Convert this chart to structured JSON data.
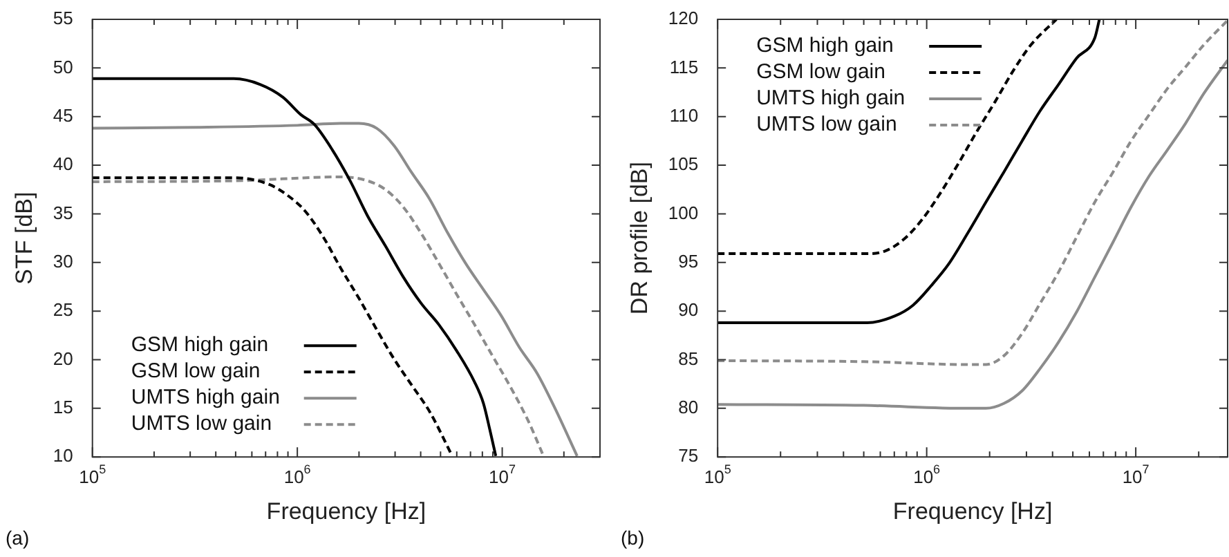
{
  "chart_data": [
    {
      "type": "line",
      "xlabel": "Frequency [Hz]",
      "ylabel": "STF [dB]",
      "log": "x",
      "legend": "bottom left",
      "marker": "none",
      "annotations": [
        "(a)"
      ],
      "xlim": [
        100000,
        30000000
      ],
      "ylim": [
        10,
        55
      ],
      "xticks": [
        {
          "value": 100000,
          "label": "10$^{5}$"
        },
        {
          "value": 200000,
          "label": null
        },
        {
          "value": 300000,
          "label": null
        },
        {
          "value": 400000,
          "label": null
        },
        {
          "value": 500000,
          "label": null
        },
        {
          "value": 600000,
          "label": null
        },
        {
          "value": 700000,
          "label": null
        },
        {
          "value": 800000,
          "label": null
        },
        {
          "value": 900000,
          "label": null
        },
        {
          "value": 1000000,
          "label": "10$^{6}$"
        },
        {
          "value": 2000000,
          "label": null
        },
        {
          "value": 3000000,
          "label": null
        },
        {
          "value": 4000000,
          "label": null
        },
        {
          "value": 5000000,
          "label": null
        },
        {
          "value": 6000000,
          "label": null
        },
        {
          "value": 7000000,
          "label": null
        },
        {
          "value": 8000000,
          "label": null
        },
        {
          "value": 9000000,
          "label": null
        },
        {
          "value": 10000000,
          "label": "10$^{7}$"
        },
        {
          "value": 20000000,
          "label": null
        },
        {
          "value": 30000000,
          "label": null
        }
      ],
      "yticks": [
        10,
        15,
        20,
        25,
        30,
        35,
        40,
        45,
        50,
        55
      ],
      "series": [
        {
          "name": "GSM high gain",
          "color": "#000000",
          "line_style": "solid",
          "x": [
            100000,
            490000,
            660000,
            850000,
            1040000,
            1210000,
            1480000,
            1810000,
            2200000,
            2690000,
            3290000,
            4020000,
            4910000,
            6000000,
            7330000,
            8100000,
            8700000,
            9300000
          ],
          "values": [
            48.9,
            48.9,
            48.3,
            47.0,
            45.2,
            44.2,
            41.6,
            38.4,
            34.8,
            31.7,
            28.5,
            25.8,
            23.6,
            20.9,
            17.7,
            15.5,
            12.8,
            10.1
          ]
        },
        {
          "name": "GSM low gain",
          "color": "#000000",
          "line_style": "dashed",
          "x": [
            100000,
            500000,
            733000,
            896000,
            1090000,
            1340000,
            1630000,
            2000000,
            2440000,
            2980000,
            3640000,
            4440000,
            5700000
          ],
          "values": [
            38.7,
            38.7,
            38.0,
            36.9,
            35.3,
            32.6,
            29.4,
            26.3,
            23.1,
            20.0,
            17.3,
            14.6,
            10.1
          ]
        },
        {
          "name": "UMTS high gain",
          "color": "#8c8c8c",
          "line_style": "solid",
          "x": [
            100000,
            329000,
            1000000,
            1630000,
            2000000,
            2440000,
            2970000,
            3600000,
            4400000,
            5430000,
            6630000,
            8100000,
            9900000,
            12100000,
            14800000,
            18100000,
            23200000
          ],
          "values": [
            43.8,
            43.9,
            44.1,
            44.3,
            44.3,
            43.8,
            42.0,
            39.3,
            36.6,
            33.0,
            29.9,
            27.2,
            24.5,
            21.3,
            18.6,
            15.0,
            10.1
          ]
        },
        {
          "name": "UMTS low gain",
          "color": "#8c8c8c",
          "line_style": "dashed",
          "x": [
            100000,
            500000,
            1630000,
            2200000,
            2690000,
            3290000,
            4020000,
            4910000,
            6000000,
            7330000,
            8960000,
            10900000,
            13400000,
            15900000
          ],
          "values": [
            38.3,
            38.4,
            38.8,
            38.4,
            37.5,
            35.7,
            33.0,
            29.9,
            26.7,
            23.6,
            20.4,
            17.3,
            13.7,
            10.1
          ]
        }
      ]
    },
    {
      "type": "line",
      "xlabel": "Frequency [Hz]",
      "ylabel": "DR profile [dB]",
      "log": "x",
      "legend": "top left",
      "marker": "none",
      "annotations": [
        "(b)"
      ],
      "xlim": [
        100000,
        27500000
      ],
      "ylim": [
        75,
        120
      ],
      "xticks": [
        {
          "value": 100000,
          "label": "10$^{5}$"
        },
        {
          "value": 200000,
          "label": null
        },
        {
          "value": 300000,
          "label": null
        },
        {
          "value": 400000,
          "label": null
        },
        {
          "value": 500000,
          "label": null
        },
        {
          "value": 600000,
          "label": null
        },
        {
          "value": 700000,
          "label": null
        },
        {
          "value": 800000,
          "label": null
        },
        {
          "value": 900000,
          "label": null
        },
        {
          "value": 1000000,
          "label": "10$^{6}$"
        },
        {
          "value": 2000000,
          "label": null
        },
        {
          "value": 3000000,
          "label": null
        },
        {
          "value": 4000000,
          "label": null
        },
        {
          "value": 5000000,
          "label": null
        },
        {
          "value": 6000000,
          "label": null
        },
        {
          "value": 7000000,
          "label": null
        },
        {
          "value": 8000000,
          "label": null
        },
        {
          "value": 9000000,
          "label": null
        },
        {
          "value": 10000000,
          "label": "10$^{7}$"
        },
        {
          "value": 20000000,
          "label": null
        }
      ],
      "yticks": [
        75,
        80,
        85,
        90,
        95,
        100,
        105,
        110,
        115,
        120
      ],
      "series": [
        {
          "name": "GSM high gain",
          "color": "#000000",
          "line_style": "solid",
          "x": [
            100000,
            520000,
            705000,
            860000,
            1050000,
            1280000,
            1570000,
            1920000,
            2340000,
            2860000,
            3490000,
            4270000,
            5210000,
            6370000,
            6700000
          ],
          "values": [
            88.8,
            88.8,
            89.5,
            90.6,
            92.6,
            94.9,
            98.0,
            101.2,
            104.3,
            107.5,
            110.6,
            113.3,
            116.0,
            118.1,
            120
          ]
        },
        {
          "name": "GSM low gain",
          "color": "#000000",
          "line_style": "dashed",
          "x": [
            100000,
            520000,
            637000,
            779000,
            950000,
            1160000,
            1420000,
            1730000,
            2120000,
            2590000,
            3160000,
            4170000
          ],
          "values": [
            95.9,
            95.9,
            96.2,
            97.4,
            99.4,
            102.1,
            105.2,
            108.4,
            111.5,
            114.7,
            117.4,
            120
          ]
        },
        {
          "name": "UMTS high gain",
          "color": "#8c8c8c",
          "line_style": "solid",
          "x": [
            100000,
            500000,
            1570000,
            1920000,
            2340000,
            2860000,
            3490000,
            4270000,
            5210000,
            6370000,
            7790000,
            9500000,
            11600000,
            14200000,
            17300000,
            21200000,
            27500000
          ],
          "values": [
            80.4,
            80.3,
            80.0,
            80.0,
            80.5,
            81.8,
            84.1,
            86.8,
            89.9,
            93.5,
            97.1,
            100.7,
            103.9,
            106.6,
            109.3,
            112.4,
            115.8
          ]
        },
        {
          "name": "UMTS low gain",
          "color": "#8c8c8c",
          "line_style": "dashed",
          "x": [
            100000,
            500000,
            1570000,
            1920000,
            2340000,
            2860000,
            3490000,
            4270000,
            5210000,
            6370000,
            7790000,
            9500000,
            11600000,
            14200000,
            17300000,
            21200000,
            27500000
          ],
          "values": [
            84.9,
            84.8,
            84.5,
            84.5,
            85.4,
            87.7,
            90.8,
            94.0,
            97.6,
            101.2,
            104.3,
            107.5,
            110.2,
            112.9,
            115.1,
            117.4,
            119.9
          ]
        }
      ]
    }
  ]
}
